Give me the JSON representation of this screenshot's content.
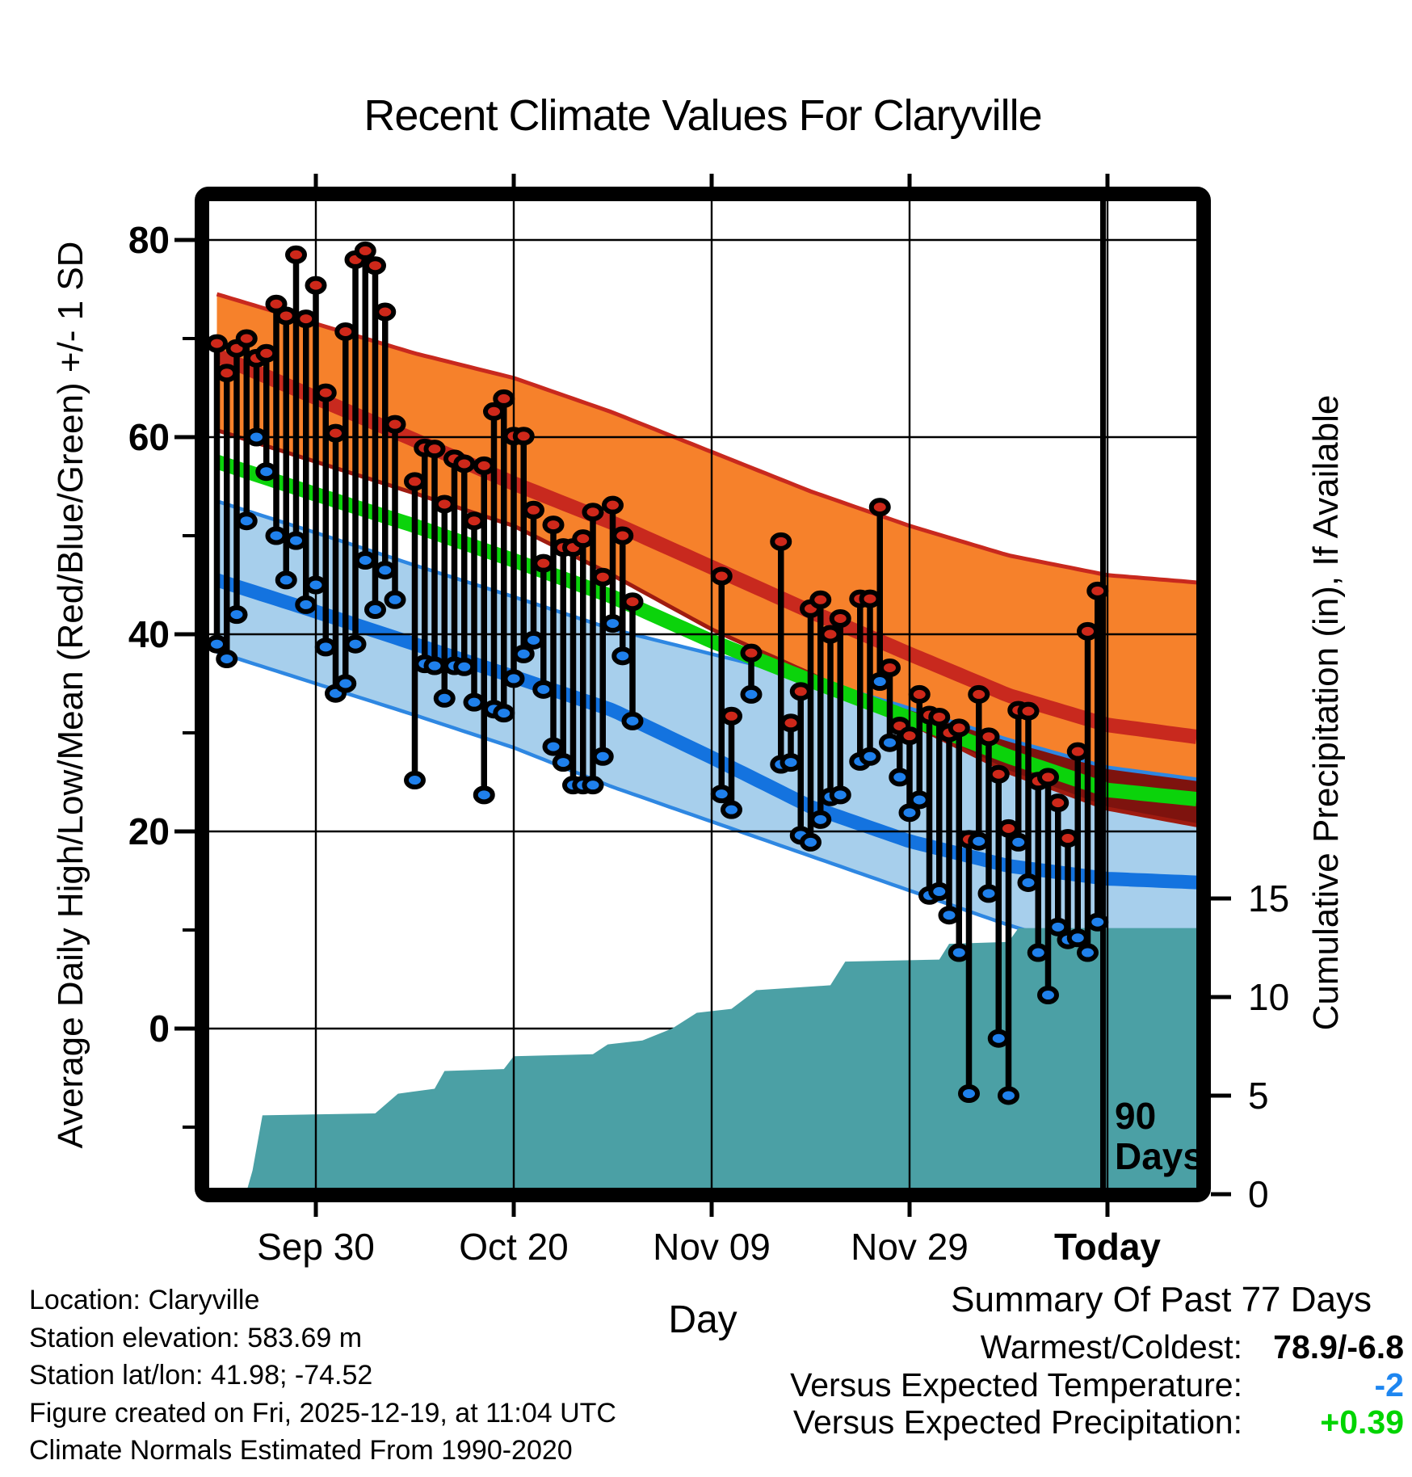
{
  "title": "Recent Climate Values For Claryville",
  "x_axis": {
    "label": "Day",
    "ticks": [
      {
        "day": 10,
        "label": "Sep 30",
        "bold": false
      },
      {
        "day": 30,
        "label": "Oct 20",
        "bold": false
      },
      {
        "day": 50,
        "label": "Nov 09",
        "bold": false
      },
      {
        "day": 70,
        "label": "Nov 29",
        "bold": false
      },
      {
        "day": 90,
        "label": "Today",
        "bold": true
      }
    ]
  },
  "left_axis": {
    "label": "Average Daily High/Low/Mean (Red/Blue/Green) +/- 1 SD",
    "ticks": [
      {
        "v": 80,
        "label": "80"
      },
      {
        "v": 60,
        "label": "60"
      },
      {
        "v": 40,
        "label": "40"
      },
      {
        "v": 20,
        "label": "20"
      },
      {
        "v": 0,
        "label": "0"
      }
    ],
    "minor_ticks": [
      70,
      50,
      30,
      10,
      -10
    ]
  },
  "right_axis": {
    "label": "Cumulative Precipitation (in), If Available",
    "ticks": [
      {
        "v": 15,
        "label": "15"
      },
      {
        "v": 10,
        "label": "10"
      },
      {
        "v": 5,
        "label": "5"
      },
      {
        "v": 0,
        "label": "0"
      }
    ]
  },
  "annotation": {
    "line_day": 89.55,
    "label_line1": "90",
    "label_line2": "Days"
  },
  "footer": {
    "lines": [
      "Location: Claryville",
      "Station elevation: 583.69 m",
      "Station lat/lon: 41.98; -74.52",
      "Figure created on Fri, 2025-12-19, at 11:04 UTC",
      "Climate Normals Estimated From 1990-2020"
    ]
  },
  "summary": {
    "heading": "Summary Of Past 77 Days",
    "rows": [
      {
        "label": "Warmest/Coldest:",
        "value": "78.9/-6.8",
        "color": "#000000"
      },
      {
        "label": "Versus Expected Temperature:",
        "value": "-2",
        "color": "#1E86F0"
      },
      {
        "label": "Versus Expected Precipitation:",
        "value": "+0.39",
        "color": "#00D400"
      }
    ]
  },
  "colors": {
    "orange_band": "#F6812B",
    "red_line": "#C8291E",
    "high_minus_sd_line": "#9F1B10",
    "band_overlap_maroon": "#7E130E",
    "green_line": "#0BD30B",
    "blue_band": "#A7CFEC",
    "blue_thin_line": "#2E87E2",
    "blue_thick_line": "#1473DF",
    "teal_fill": "#4BA0A5",
    "red_dot": "#CE281A",
    "blue_dot": "#1F80EC",
    "stem": "#000000"
  },
  "chart_data": {
    "type": "line",
    "title": "Recent Climate Values For Claryville",
    "xlabel": "Day",
    "ylabel_left": "Average Daily High/Low/Mean (Red/Blue/Green) +/- 1 SD",
    "ylabel_right": "Cumulative Precipitation (in), If Available",
    "x_unit": "day index; 0 = Sep 20, 10 = Sep 30, 30 = Oct 20, 50 = Nov 09, 70 = Nov 29, 90 = Today (Dec 19)",
    "x_range_days": [
      0,
      99.7
    ],
    "temp_axis_ticks": [
      80,
      60,
      40,
      20,
      0
    ],
    "precip_axis_ticks": [
      15,
      10,
      5,
      0
    ],
    "grid": true,
    "legend_position": "none",
    "band_sample_days": [
      0,
      10,
      20,
      30,
      40,
      50,
      60,
      70,
      80,
      90,
      99.7
    ],
    "bands": {
      "high_plus_sd": [
        74.5,
        71.5,
        68.5,
        66.0,
        62.5,
        58.5,
        54.5,
        51.0,
        48.0,
        46.0,
        45.2
      ],
      "high_mean": [
        68.3,
        64.0,
        59.7,
        55.3,
        51.3,
        46.8,
        42.3,
        38.0,
        33.8,
        30.8,
        29.5
      ],
      "high_minus_sd": [
        60.7,
        57.5,
        54.3,
        51.0,
        46.0,
        40.5,
        36.0,
        31.0,
        26.0,
        22.3,
        20.5
      ],
      "mean": [
        57.5,
        54.2,
        51.0,
        47.5,
        43.8,
        39.3,
        35.3,
        31.5,
        27.6,
        24.2,
        23.2
      ],
      "low_plus_sd": [
        53.5,
        50.3,
        47.0,
        43.8,
        40.5,
        38.0,
        35.5,
        32.5,
        29.3,
        26.5,
        25.2
      ],
      "low_mean": [
        45.5,
        42.3,
        39.0,
        35.7,
        32.3,
        27.5,
        22.5,
        19.0,
        16.5,
        15.2,
        14.8
      ],
      "low_minus_sd": [
        38.2,
        35.0,
        31.8,
        28.5,
        24.5,
        21.0,
        17.5,
        14.0,
        10.5,
        7.5,
        5.5
      ]
    },
    "stems_note": "each item = [day_index, daily_high_F (red dot), daily_low_F (blue dot)]; gaps at days 19, 43-50, 53, 55-56, 64 = 77 observed days",
    "stems": [
      [
        0,
        69.5,
        39
      ],
      [
        1,
        66.5,
        37.5
      ],
      [
        2,
        69,
        42
      ],
      [
        3,
        70,
        51.5
      ],
      [
        4,
        68,
        60
      ],
      [
        5,
        68.5,
        56.5
      ],
      [
        6,
        73.5,
        50
      ],
      [
        7,
        72.3,
        45.5
      ],
      [
        8,
        78.5,
        49.5
      ],
      [
        9,
        72,
        43
      ],
      [
        10,
        75.4,
        45
      ],
      [
        11,
        64.5,
        38.7
      ],
      [
        12,
        60.4,
        34
      ],
      [
        13,
        70.7,
        35
      ],
      [
        14,
        78,
        39
      ],
      [
        15,
        78.9,
        47.5
      ],
      [
        16,
        77.4,
        42.5
      ],
      [
        17,
        72.7,
        46.5
      ],
      [
        18,
        61.3,
        43.5
      ],
      [
        20,
        55.5,
        25.2
      ],
      [
        21,
        58.9,
        37
      ],
      [
        22,
        58.8,
        36.8
      ],
      [
        23,
        53.2,
        33.5
      ],
      [
        24,
        57.8,
        36.8
      ],
      [
        25,
        57.3,
        36.7
      ],
      [
        26,
        51.5,
        33.1
      ],
      [
        27,
        57.1,
        23.7
      ],
      [
        28,
        62.6,
        32.4
      ],
      [
        29,
        63.9,
        32
      ],
      [
        30,
        60.1,
        35.5
      ],
      [
        31,
        60.1,
        38
      ],
      [
        32,
        52.6,
        39.4
      ],
      [
        33,
        47.2,
        34.4
      ],
      [
        34,
        51.1,
        28.6
      ],
      [
        35,
        48.8,
        27
      ],
      [
        36,
        48.8,
        24.7
      ],
      [
        37,
        49.7,
        24.7
      ],
      [
        38,
        52.4,
        24.7
      ],
      [
        39,
        45.8,
        27.6
      ],
      [
        40,
        53.1,
        41.1
      ],
      [
        41,
        50,
        37.8
      ],
      [
        42,
        43.3,
        31.2
      ],
      [
        51,
        45.9,
        23.8
      ],
      [
        52,
        31.7,
        22.2
      ],
      [
        54,
        38.1,
        33.9
      ],
      [
        57,
        49.4,
        26.8
      ],
      [
        58,
        31,
        27
      ],
      [
        59,
        34.2,
        19.6
      ],
      [
        60,
        42.6,
        18.9
      ],
      [
        61,
        43.5,
        21.2
      ],
      [
        62,
        40,
        23.5
      ],
      [
        63,
        41.6,
        23.7
      ],
      [
        65,
        43.6,
        27.1
      ],
      [
        66,
        43.6,
        27.6
      ],
      [
        67,
        52.9,
        35.2
      ],
      [
        68,
        36.6,
        29
      ],
      [
        69,
        30.7,
        25.5
      ],
      [
        70,
        29.7,
        21.9
      ],
      [
        71,
        33.9,
        23.2
      ],
      [
        72,
        31.8,
        13.5
      ],
      [
        73,
        31.6,
        13.9
      ],
      [
        74,
        30,
        11.5
      ],
      [
        75,
        30.5,
        7.7
      ],
      [
        76,
        19.2,
        -6.6
      ],
      [
        77,
        33.9,
        19
      ],
      [
        78,
        29.6,
        13.7
      ],
      [
        79,
        25.8,
        -1
      ],
      [
        80,
        20.3,
        -6.8
      ],
      [
        81,
        32.3,
        18.9
      ],
      [
        82,
        32.2,
        14.8
      ],
      [
        83,
        25.1,
        7.7
      ],
      [
        84,
        25.5,
        3.4
      ],
      [
        85,
        22.9,
        10.3
      ],
      [
        86,
        19.3,
        9
      ],
      [
        87,
        28.1,
        9.2
      ],
      [
        88,
        40.3,
        7.7
      ],
      [
        89,
        44.4,
        10.8
      ]
    ],
    "cumulative_precip_steps_note": "each item = [day_index, cumulative precipitation inches]",
    "cumulative_precip_steps": [
      [
        0,
        0
      ],
      [
        3,
        0.15
      ],
      [
        3.6,
        1.2
      ],
      [
        4.6,
        4.0
      ],
      [
        16,
        4.1
      ],
      [
        18.3,
        5.1
      ],
      [
        22,
        5.35
      ],
      [
        23,
        6.25
      ],
      [
        29,
        6.35
      ],
      [
        30,
        7.0
      ],
      [
        38,
        7.1
      ],
      [
        39.5,
        7.6
      ],
      [
        43,
        7.8
      ],
      [
        46,
        8.4
      ],
      [
        48.5,
        9.2
      ],
      [
        52,
        9.4
      ],
      [
        54.5,
        10.35
      ],
      [
        62,
        10.6
      ],
      [
        63.5,
        11.8
      ],
      [
        73,
        11.9
      ],
      [
        74,
        12.7
      ],
      [
        80,
        12.8
      ],
      [
        81,
        13.5
      ],
      [
        99.7,
        13.5
      ]
    ],
    "vertical_marker": {
      "day": 89.55,
      "label": "90 Days"
    }
  }
}
